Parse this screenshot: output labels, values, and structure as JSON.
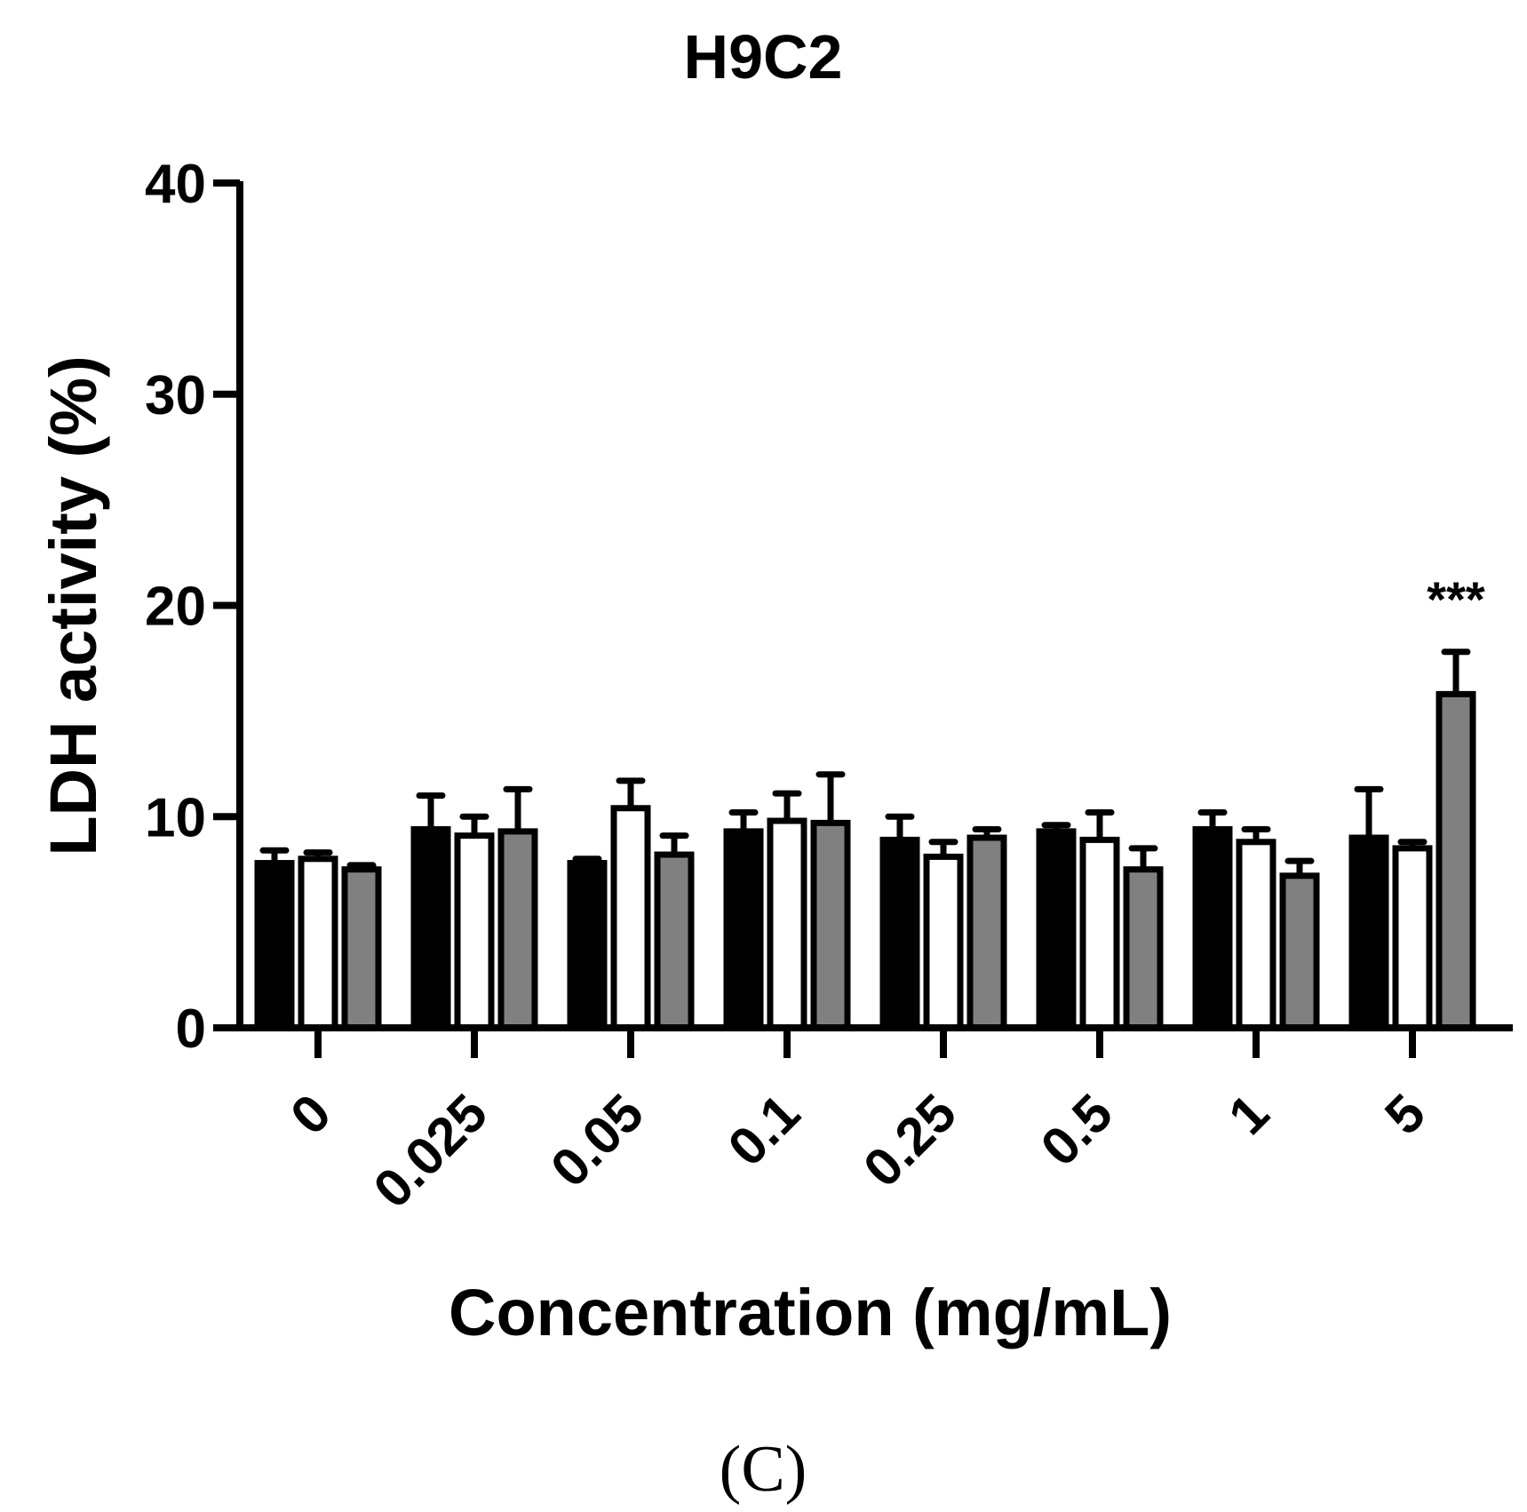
{
  "panel_label": "(C)",
  "chart_data": {
    "type": "bar",
    "title": "H9C2",
    "xlabel": "Concentration (mg/mL)",
    "ylabel": "LDH activity (%)",
    "ylim": [
      0,
      40
    ],
    "yticks": [
      "0",
      "10",
      "20",
      "30",
      "40"
    ],
    "categories": [
      "0",
      "0.025",
      "0.05",
      "0.1",
      "0.25",
      "0.5",
      "1",
      "5"
    ],
    "grid": false,
    "legend": "none",
    "series": [
      {
        "fill": "#000000",
        "values": [
          7.8,
          9.4,
          7.8,
          9.3,
          8.9,
          9.3,
          9.4,
          9.0
        ],
        "errors": [
          0.6,
          1.6,
          0.2,
          0.9,
          1.1,
          0.3,
          0.8,
          2.3
        ]
      },
      {
        "fill": "#ffffff",
        "values": [
          8.0,
          9.1,
          10.4,
          9.8,
          8.1,
          8.9,
          8.8,
          8.5
        ],
        "errors": [
          0.3,
          0.9,
          1.3,
          1.3,
          0.7,
          1.3,
          0.6,
          0.3
        ]
      },
      {
        "fill": "#808080",
        "values": [
          7.5,
          9.3,
          8.2,
          9.7,
          9.0,
          7.5,
          7.2,
          15.8
        ],
        "errors": [
          0.2,
          2.0,
          0.9,
          2.3,
          0.4,
          1.0,
          0.7,
          2.0
        ]
      }
    ],
    "annotations": [
      {
        "text": "***",
        "category": "5",
        "series": 2
      }
    ]
  }
}
